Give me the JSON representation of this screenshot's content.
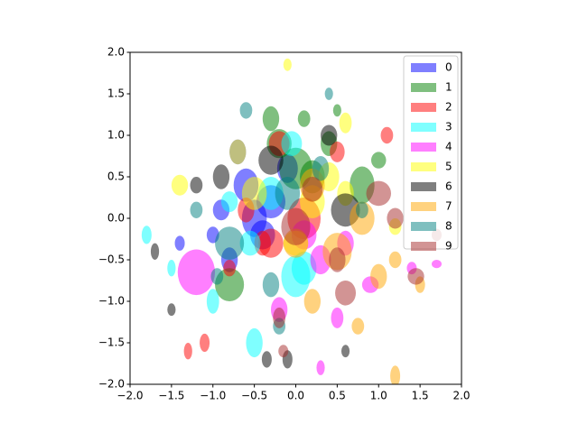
{
  "chart_data": {
    "type": "ellipse",
    "alpha": 0.5,
    "legend": "upper right",
    "xlim": [
      -2,
      2
    ],
    "ylim": [
      -2,
      2
    ],
    "xticks": [
      {
        "value": -2,
        "label": "−2.0"
      },
      {
        "value": -1.5,
        "label": "−1.5"
      },
      {
        "value": -1,
        "label": "−1.0"
      },
      {
        "value": -0.5,
        "label": "−0.5"
      },
      {
        "value": 0,
        "label": "0.0"
      },
      {
        "value": 0.5,
        "label": "0.5"
      },
      {
        "value": 1,
        "label": "1.0"
      },
      {
        "value": 1.5,
        "label": "1.5"
      },
      {
        "value": 2,
        "label": "2.0"
      }
    ],
    "yticks": [
      {
        "value": -2,
        "label": "−2.0"
      },
      {
        "value": -1.5,
        "label": "−1.5"
      },
      {
        "value": -1,
        "label": "−1.0"
      },
      {
        "value": -0.5,
        "label": "−0.5"
      },
      {
        "value": 0,
        "label": "0.0"
      },
      {
        "value": 0.5,
        "label": "0.5"
      },
      {
        "value": 1,
        "label": "1.0"
      },
      {
        "value": 1.5,
        "label": "1.5"
      },
      {
        "value": 2,
        "label": "2.0"
      }
    ],
    "series": [
      {
        "name": "0",
        "color": "#0000ff",
        "x": [
          -0.6,
          -0.3,
          -0.8,
          -0.5,
          -0.1,
          -1.0,
          -1.4,
          -0.7,
          -0.4,
          -0.9
        ],
        "values": [
          0.4,
          0.2,
          -0.5,
          0.0,
          0.6,
          -0.2,
          -0.3,
          0.8,
          -0.2,
          0.1
        ],
        "widths": [
          0.3,
          0.35,
          0.2,
          0.3,
          0.25,
          0.15,
          0.12,
          0.2,
          0.3,
          0.2
        ],
        "heights": [
          0.4,
          0.4,
          0.3,
          0.45,
          0.35,
          0.2,
          0.18,
          0.3,
          0.35,
          0.25
        ]
      },
      {
        "name": "1",
        "color": "#008000",
        "x": [
          0.0,
          0.2,
          -0.2,
          0.4,
          0.8,
          -0.8,
          0.1,
          -0.3,
          1.0,
          0.5
        ],
        "values": [
          0.6,
          0.5,
          0.9,
          0.9,
          0.4,
          -0.8,
          1.2,
          1.2,
          0.7,
          1.3
        ],
        "widths": [
          0.4,
          0.3,
          0.3,
          0.2,
          0.3,
          0.35,
          0.15,
          0.2,
          0.18,
          0.1
        ],
        "heights": [
          0.5,
          0.4,
          0.35,
          0.3,
          0.45,
          0.4,
          0.2,
          0.3,
          0.2,
          0.15
        ]
      },
      {
        "name": "2",
        "color": "#ff0000",
        "x": [
          -0.3,
          -0.6,
          0.1,
          -0.2,
          -1.1,
          -0.8,
          0.5,
          1.1,
          -1.3,
          -0.4
        ],
        "values": [
          -0.3,
          0.1,
          0.0,
          0.9,
          -1.5,
          -0.6,
          0.8,
          1.0,
          -1.6,
          -0.3
        ],
        "widths": [
          0.3,
          0.2,
          0.4,
          0.25,
          0.12,
          0.15,
          0.18,
          0.15,
          0.1,
          0.2
        ],
        "heights": [
          0.35,
          0.3,
          0.5,
          0.3,
          0.22,
          0.2,
          0.25,
          0.2,
          0.2,
          0.3
        ]
      },
      {
        "name": "3",
        "color": "#00ffff",
        "x": [
          -0.3,
          0.0,
          -0.05,
          -0.5,
          -0.55,
          -1.8,
          -1.0,
          0.1,
          -1.5,
          -0.8
        ],
        "values": [
          0.3,
          -0.7,
          0.9,
          -1.5,
          -0.3,
          -0.2,
          -1.0,
          -0.6,
          -0.6,
          0.2
        ],
        "widths": [
          0.3,
          0.35,
          0.25,
          0.2,
          0.25,
          0.12,
          0.15,
          0.3,
          0.1,
          0.2
        ],
        "heights": [
          0.4,
          0.5,
          0.3,
          0.35,
          0.3,
          0.22,
          0.3,
          0.4,
          0.2,
          0.25
        ]
      },
      {
        "name": "4",
        "color": "#ff00ff",
        "x": [
          -1.2,
          0.3,
          0.1,
          0.5,
          0.9,
          1.4,
          1.7,
          0.6,
          -0.2,
          0.3
        ],
        "values": [
          -0.65,
          -0.5,
          -0.2,
          -1.2,
          -0.8,
          -0.6,
          -0.55,
          -0.3,
          -1.1,
          -1.8
        ],
        "widths": [
          0.45,
          0.25,
          0.3,
          0.15,
          0.2,
          0.12,
          0.12,
          0.2,
          0.2,
          0.1
        ],
        "heights": [
          0.55,
          0.35,
          0.35,
          0.25,
          0.2,
          0.15,
          0.1,
          0.3,
          0.3,
          0.18
        ]
      },
      {
        "name": "5",
        "color": "#ffff00",
        "x": [
          0.0,
          -0.5,
          0.4,
          0.6,
          -1.4,
          0.6,
          -0.7,
          1.2,
          0.2,
          -0.1
        ],
        "values": [
          -0.3,
          0.3,
          0.5,
          0.3,
          0.4,
          1.15,
          0.8,
          -0.1,
          0.2,
          1.85
        ],
        "widths": [
          0.3,
          0.3,
          0.25,
          0.2,
          0.2,
          0.15,
          0.2,
          0.15,
          0.3,
          0.1
        ],
        "heights": [
          0.3,
          0.4,
          0.35,
          0.3,
          0.25,
          0.25,
          0.3,
          0.2,
          0.4,
          0.15
        ]
      },
      {
        "name": "6",
        "color": "#000000",
        "x": [
          0.6,
          -0.3,
          -1.2,
          0.4,
          -1.7,
          -0.9,
          -0.35,
          -0.1,
          -1.5,
          0.6
        ],
        "values": [
          0.1,
          0.7,
          0.4,
          1.0,
          -0.4,
          0.5,
          -1.7,
          -1.7,
          -1.1,
          -1.6
        ],
        "widths": [
          0.35,
          0.3,
          0.15,
          0.2,
          0.1,
          0.2,
          0.12,
          0.12,
          0.1,
          0.1
        ],
        "heights": [
          0.4,
          0.35,
          0.2,
          0.25,
          0.2,
          0.3,
          0.2,
          0.22,
          0.15,
          0.15
        ]
      },
      {
        "name": "7",
        "color": "#ffa500",
        "x": [
          0.5,
          0.8,
          1.2,
          0.0,
          1.0,
          0.75,
          1.2,
          0.2,
          0.2,
          1.5
        ],
        "values": [
          -0.4,
          0.0,
          -1.9,
          -0.3,
          -0.7,
          -1.3,
          -0.5,
          -1.0,
          0.4,
          -0.8
        ],
        "widths": [
          0.35,
          0.3,
          0.12,
          0.3,
          0.2,
          0.15,
          0.15,
          0.2,
          0.3,
          0.12
        ],
        "heights": [
          0.45,
          0.4,
          0.25,
          0.35,
          0.3,
          0.2,
          0.2,
          0.3,
          0.4,
          0.2
        ]
      },
      {
        "name": "8",
        "color": "#008080",
        "x": [
          -0.8,
          -0.1,
          0.3,
          -0.3,
          -0.95,
          -1.2,
          0.4,
          -0.6,
          0.8,
          -0.2
        ],
        "values": [
          -0.3,
          0.3,
          0.6,
          -0.8,
          -0.7,
          0.1,
          1.5,
          1.3,
          0.1,
          -1.3
        ],
        "widths": [
          0.35,
          0.3,
          0.2,
          0.2,
          0.15,
          0.15,
          0.1,
          0.15,
          0.15,
          0.15
        ],
        "heights": [
          0.4,
          0.4,
          0.3,
          0.3,
          0.2,
          0.2,
          0.15,
          0.2,
          0.2,
          0.2
        ]
      },
      {
        "name": "9",
        "color": "#a52a2a",
        "x": [
          0.0,
          0.6,
          1.0,
          1.45,
          1.2,
          -0.2,
          0.5,
          0.2,
          1.7,
          -0.15
        ],
        "values": [
          -0.1,
          -0.9,
          0.3,
          -0.7,
          0.0,
          -1.2,
          -0.5,
          0.35,
          -0.2,
          -1.6
        ],
        "widths": [
          0.35,
          0.25,
          0.3,
          0.2,
          0.2,
          0.15,
          0.2,
          0.25,
          0.12,
          0.12
        ],
        "heights": [
          0.45,
          0.3,
          0.3,
          0.2,
          0.25,
          0.25,
          0.3,
          0.3,
          0.15,
          0.15
        ]
      }
    ]
  }
}
